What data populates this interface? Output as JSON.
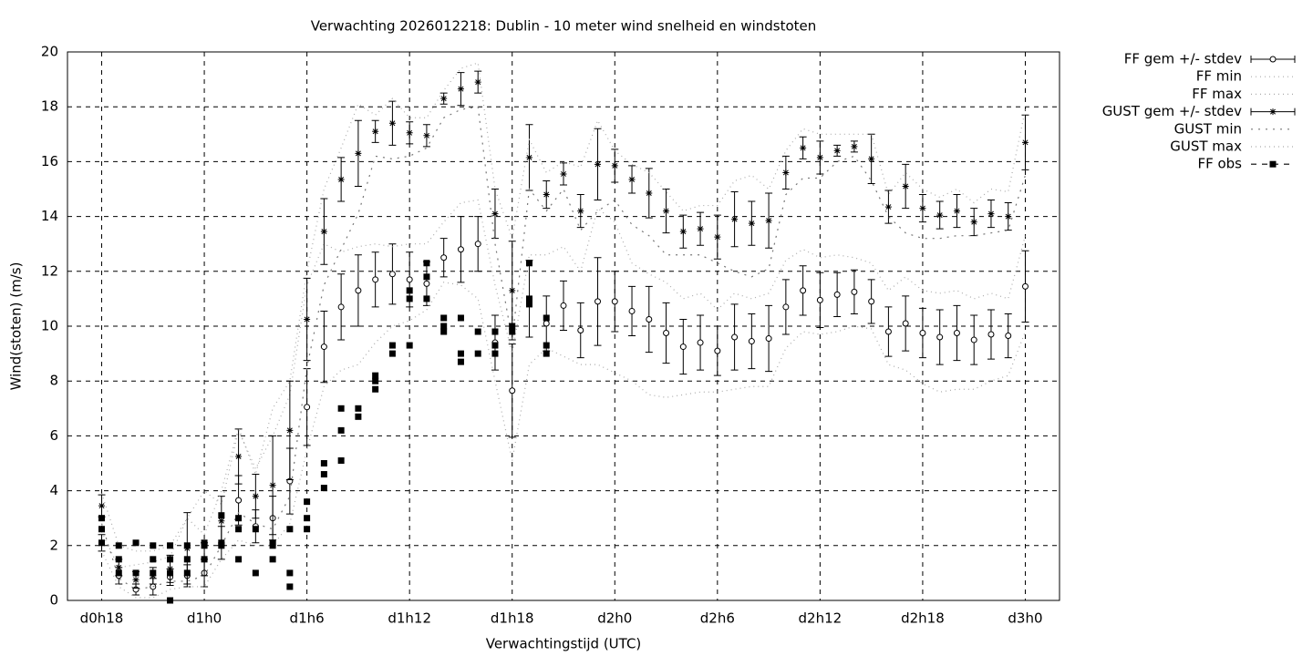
{
  "chart_data": {
    "type": "line",
    "title": "Verwachting 2026012218: Dublin - 10 meter wind snelheid en windstoten",
    "x_label": "Verwachtingstijd (UTC)",
    "y_label": "Wind(stoten) (m/s)",
    "xlim": [
      16,
      74
    ],
    "ylim": [
      0,
      20
    ],
    "xticks": [
      {
        "value": 18,
        "label": "d0h18"
      },
      {
        "value": 24,
        "label": "d1h0"
      },
      {
        "value": 30,
        "label": "d1h6"
      },
      {
        "value": 36,
        "label": "d1h12"
      },
      {
        "value": 42,
        "label": "d1h18"
      },
      {
        "value": 48,
        "label": "d2h0"
      },
      {
        "value": 54,
        "label": "d2h6"
      },
      {
        "value": 60,
        "label": "d2h12"
      },
      {
        "value": 66,
        "label": "d2h18"
      },
      {
        "value": 72,
        "label": "d3h0"
      }
    ],
    "yticks": [
      0,
      2,
      4,
      6,
      8,
      10,
      12,
      14,
      16,
      18,
      20
    ],
    "grid": true,
    "legend": "top-right-outside",
    "x": [
      18,
      19,
      20,
      21,
      22,
      23,
      24,
      25,
      26,
      27,
      28,
      29,
      30,
      31,
      32,
      33,
      34,
      35,
      36,
      37,
      38,
      39,
      40,
      41,
      42,
      43,
      44,
      45,
      46,
      47,
      48,
      49,
      50,
      51,
      52,
      53,
      54,
      55,
      56,
      57,
      58,
      59,
      60,
      61,
      62,
      63,
      64,
      65,
      66,
      67,
      68,
      69,
      70,
      71,
      72
    ],
    "series": [
      {
        "name": "FF gem +/- stdev",
        "color": "#000000",
        "marker": "circle",
        "line": "none",
        "values": [
          2.1,
          0.9,
          0.4,
          0.5,
          0.85,
          0.9,
          1.0,
          2.1,
          3.65,
          2.7,
          3.0,
          4.35,
          7.05,
          9.25,
          10.7,
          11.3,
          11.7,
          11.9,
          11.7,
          11.55,
          12.5,
          12.8,
          13.0,
          9.4,
          7.65,
          11.0,
          10.1,
          10.75,
          9.85,
          10.9,
          10.9,
          10.55,
          10.25,
          9.75,
          9.25,
          9.4,
          9.1,
          9.6,
          9.45,
          9.55,
          10.7,
          11.3,
          10.95,
          11.15,
          11.25,
          10.9,
          9.8,
          10.1,
          9.75,
          9.6,
          9.75,
          9.5,
          9.7,
          9.65,
          11.45
        ],
        "errors": [
          0.3,
          0.3,
          0.2,
          0.3,
          0.3,
          0.4,
          0.5,
          0.6,
          0.9,
          0.6,
          0.8,
          1.2,
          1.4,
          1.3,
          1.2,
          1.3,
          1.0,
          1.1,
          1.0,
          0.8,
          0.7,
          1.2,
          1.0,
          1.0,
          1.7,
          1.4,
          1.0,
          0.9,
          1.0,
          1.6,
          1.1,
          0.9,
          1.2,
          1.1,
          1.0,
          1.0,
          0.9,
          1.2,
          1.0,
          1.2,
          1.0,
          0.9,
          1.0,
          0.8,
          0.8,
          0.8,
          0.9,
          1.0,
          0.9,
          1.0,
          1.0,
          0.9,
          0.9,
          0.8,
          1.3
        ]
      },
      {
        "name": "FF min",
        "color": "#aaaaaa",
        "marker": "none",
        "line": "dotted",
        "values": [
          1.8,
          0.5,
          0.1,
          0.1,
          0.4,
          0.5,
          0.5,
          1.5,
          2.2,
          2.0,
          2.0,
          2.8,
          5.5,
          7.8,
          8.4,
          8.6,
          9.4,
          10.0,
          10.2,
          10.6,
          11.6,
          11.5,
          11.0,
          8.0,
          5.1,
          8.6,
          9.2,
          8.9,
          8.6,
          8.6,
          8.3,
          8.0,
          7.5,
          7.4,
          7.5,
          7.6,
          7.6,
          7.7,
          7.8,
          7.8,
          9.2,
          9.8,
          9.7,
          9.8,
          10.0,
          9.9,
          8.6,
          8.4,
          7.9,
          7.6,
          7.7,
          7.7,
          8.0,
          8.2,
          9.8
        ]
      },
      {
        "name": "FF max",
        "color": "#aaaaaa",
        "marker": "none",
        "line": "dotted",
        "values": [
          2.5,
          1.2,
          1.3,
          1.4,
          1.6,
          3.0,
          4.0,
          3.5,
          6.2,
          4.8,
          6.0,
          7.5,
          11.5,
          13.0,
          12.7,
          12.9,
          13.0,
          12.9,
          13.0,
          13.0,
          13.8,
          14.5,
          14.6,
          11.5,
          9.0,
          12.6,
          12.6,
          12.9,
          12.0,
          14.3,
          13.8,
          12.3,
          11.9,
          11.6,
          11.0,
          11.2,
          10.6,
          11.2,
          11.0,
          11.2,
          12.4,
          12.8,
          12.5,
          12.6,
          12.5,
          12.3,
          11.3,
          11.8,
          11.3,
          11.2,
          11.3,
          11.0,
          11.2,
          11.0,
          13.3
        ]
      },
      {
        "name": "GUST gem +/- stdev",
        "color": "#000000",
        "marker": "star",
        "line": "none",
        "values": [
          3.45,
          1.2,
          0.75,
          0.9,
          1.15,
          1.9,
          1.5,
          2.9,
          5.25,
          3.8,
          4.2,
          6.2,
          10.25,
          13.45,
          15.35,
          16.3,
          17.1,
          17.4,
          17.05,
          16.95,
          18.3,
          18.65,
          18.9,
          14.1,
          11.3,
          16.15,
          14.8,
          15.55,
          14.2,
          15.9,
          15.85,
          15.35,
          14.85,
          14.2,
          13.45,
          13.55,
          13.25,
          13.9,
          13.75,
          13.85,
          15.6,
          16.5,
          16.15,
          16.4,
          16.55,
          16.1,
          14.35,
          15.1,
          14.3,
          14.05,
          14.2,
          13.8,
          14.1,
          14.0,
          16.7
        ],
        "errors": [
          0.4,
          0.3,
          0.3,
          0.3,
          0.5,
          1.3,
          0.6,
          0.9,
          1.0,
          0.8,
          1.8,
          1.8,
          1.5,
          1.2,
          0.8,
          1.2,
          0.4,
          0.8,
          0.4,
          0.4,
          0.2,
          0.6,
          0.4,
          0.9,
          1.8,
          1.2,
          0.5,
          0.4,
          0.6,
          1.3,
          0.6,
          0.5,
          0.9,
          0.8,
          0.6,
          0.6,
          0.8,
          1.0,
          0.8,
          1.0,
          0.6,
          0.4,
          0.6,
          0.2,
          0.2,
          0.9,
          0.6,
          0.8,
          0.5,
          0.5,
          0.6,
          0.5,
          0.5,
          0.5,
          1.0
        ]
      },
      {
        "name": "GUST min",
        "color": "#777777",
        "marker": "none",
        "line": "sparse-dotted",
        "values": [
          2.8,
          0.8,
          0.4,
          0.5,
          0.7,
          0.7,
          0.9,
          2.0,
          3.2,
          2.8,
          2.6,
          3.8,
          8.5,
          11.5,
          12.8,
          14.1,
          16.2,
          16.1,
          16.2,
          16.5,
          17.6,
          17.9,
          18.0,
          13.0,
          9.5,
          15.0,
          14.2,
          15.0,
          13.5,
          14.2,
          14.6,
          13.7,
          13.3,
          12.6,
          12.6,
          12.6,
          12.3,
          12.0,
          11.8,
          12.1,
          14.8,
          15.4,
          15.4,
          16.0,
          16.2,
          15.3,
          14.0,
          13.4,
          13.2,
          13.2,
          13.3,
          13.3,
          13.4,
          13.5,
          15.5
        ]
      },
      {
        "name": "GUST max",
        "color": "#aaaaaa",
        "marker": "none",
        "line": "dotted",
        "values": [
          3.9,
          2.0,
          1.8,
          1.8,
          2.0,
          3.0,
          2.4,
          4.0,
          6.3,
          4.6,
          7.0,
          8.0,
          12.0,
          15.0,
          16.5,
          18.1,
          17.7,
          18.3,
          17.6,
          17.6,
          18.6,
          19.4,
          19.6,
          15.0,
          13.2,
          16.8,
          15.6,
          16.0,
          15.8,
          17.5,
          16.4,
          15.9,
          15.6,
          14.9,
          14.2,
          14.4,
          14.4,
          15.3,
          15.5,
          15.0,
          16.4,
          17.2,
          17.0,
          17.0,
          17.0,
          17.0,
          14.8,
          15.6,
          15.0,
          14.7,
          15.0,
          14.5,
          15.0,
          14.9,
          17.9
        ]
      },
      {
        "name": "FF obs",
        "color": "#000000",
        "marker": "square",
        "line": "dashed",
        "x": [
          18,
          18,
          18,
          19,
          19,
          19,
          20,
          20,
          21,
          21,
          21,
          22,
          22,
          22,
          22,
          23,
          23,
          23,
          24,
          24,
          24,
          25,
          25,
          25,
          26,
          26,
          26,
          27,
          27,
          28,
          28,
          28,
          29,
          29,
          29,
          30,
          30,
          30,
          31,
          31,
          31,
          32,
          32,
          32,
          33,
          33,
          34,
          34,
          34,
          35,
          35,
          36,
          36,
          36,
          37,
          37,
          37,
          38,
          38,
          38,
          39,
          39,
          39,
          40,
          40,
          41,
          41,
          41,
          42,
          42,
          43,
          43,
          43,
          44,
          44,
          44
        ],
        "values": [
          3,
          2.6,
          2.1,
          2,
          1.5,
          1,
          2.1,
          1,
          2,
          1.5,
          1,
          2,
          1.5,
          1,
          0,
          2,
          1.5,
          1,
          2.1,
          2,
          1.5,
          3.1,
          2.1,
          2,
          3,
          2.6,
          1.5,
          2.6,
          1,
          2.1,
          2,
          1.5,
          2.6,
          1,
          0.5,
          3.6,
          3,
          2.6,
          5,
          4.6,
          4.1,
          7,
          6.2,
          5.1,
          7,
          6.7,
          8.2,
          8,
          7.7,
          9.3,
          9,
          11.3,
          11,
          9.3,
          12.3,
          11.8,
          11,
          10.3,
          10,
          9.8,
          10.3,
          9,
          8.7,
          9.8,
          9,
          9.8,
          9.3,
          9,
          10,
          9.8,
          12.3,
          11,
          10.8,
          10.3,
          9.3,
          9
        ]
      }
    ]
  }
}
